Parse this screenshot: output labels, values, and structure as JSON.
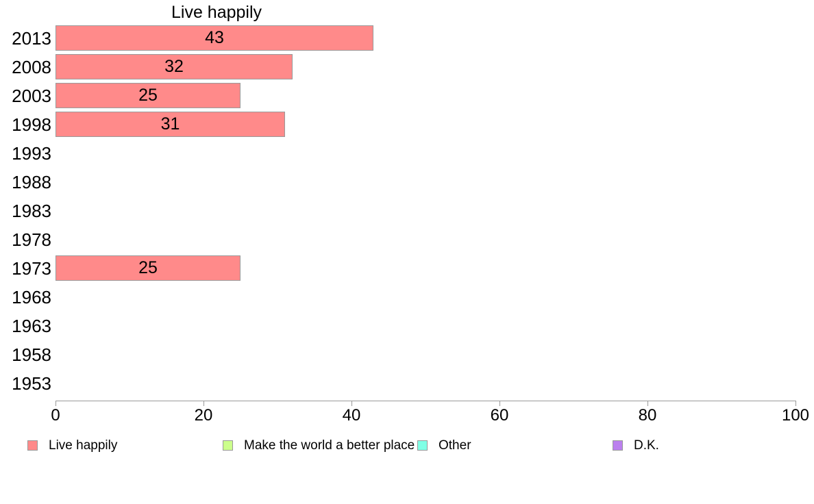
{
  "chart_data": {
    "type": "bar",
    "orientation": "horizontal",
    "title": "Live happily",
    "categories": [
      "2013",
      "2008",
      "2003",
      "1998",
      "1993",
      "1988",
      "1983",
      "1978",
      "1973",
      "1968",
      "1963",
      "1958",
      "1953"
    ],
    "values": [
      43,
      32,
      25,
      31,
      null,
      null,
      null,
      null,
      25,
      null,
      null,
      null,
      null
    ],
    "xlabel": "",
    "ylabel": "",
    "xlim": [
      0,
      100
    ],
    "x_ticks": [
      0,
      20,
      40,
      60,
      80,
      100
    ],
    "grid": false,
    "legend_position": "bottom",
    "series_color": "#FF8A8A",
    "bar_border_color": "#999999",
    "axis_color": "#999999",
    "legend": [
      {
        "label": "Live happily",
        "color": "#FF8A8A"
      },
      {
        "label": "Make the world a better place",
        "color": "#CCFF8C"
      },
      {
        "label": "Other",
        "color": "#80FFE6"
      },
      {
        "label": "D.K.",
        "color": "#BB80EE"
      }
    ]
  }
}
